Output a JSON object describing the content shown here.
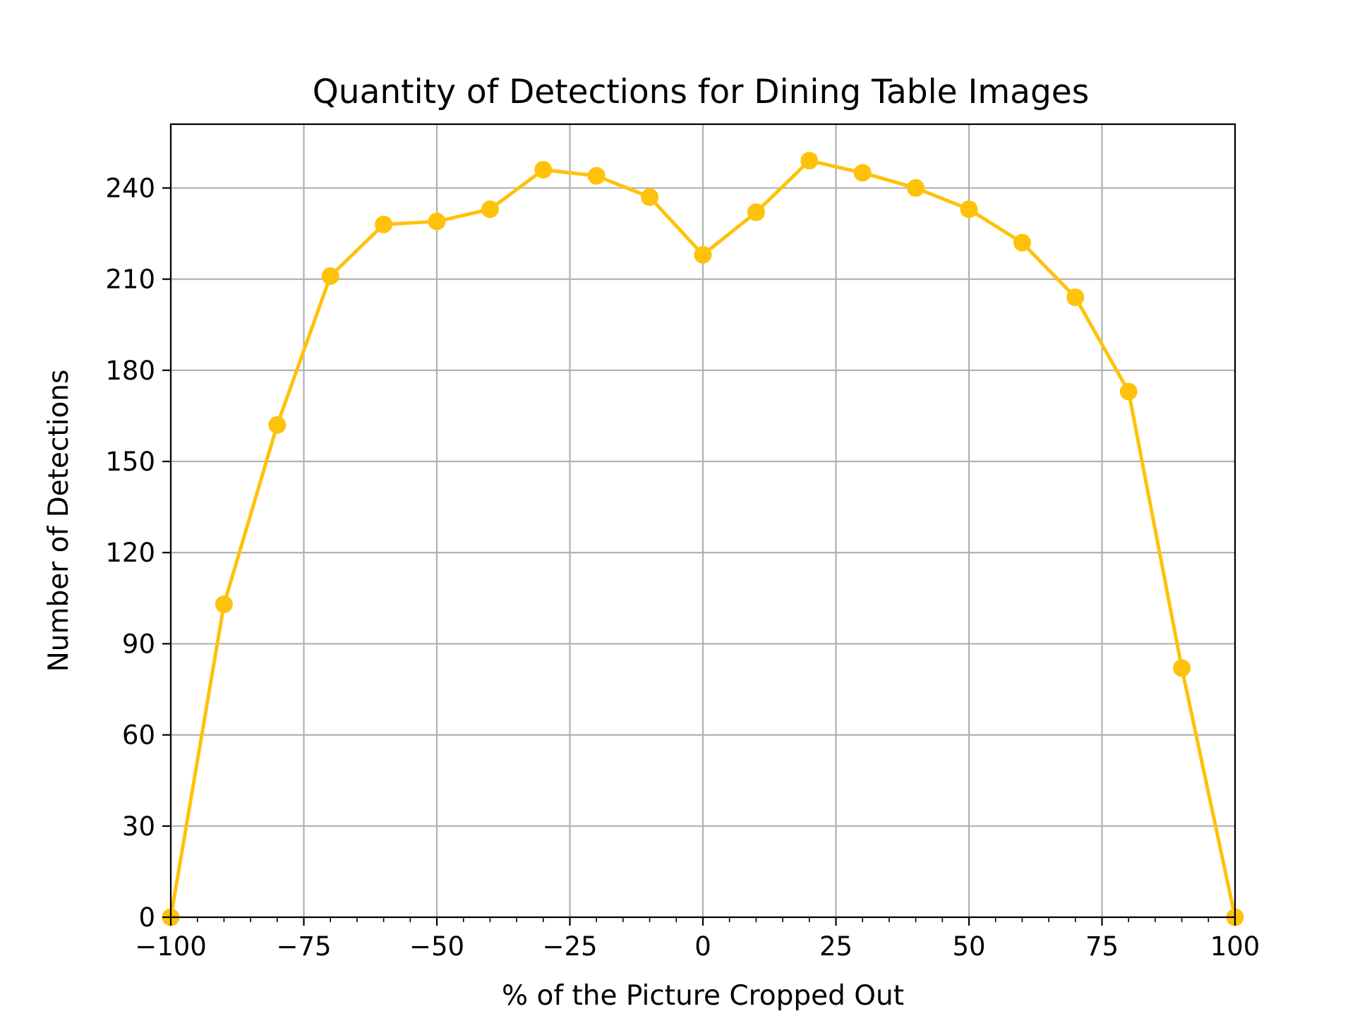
{
  "chart_data": {
    "type": "line",
    "title": "Quantity of Detections for Dining Table Images",
    "xlabel": "% of the Picture Cropped Out",
    "ylabel": "Number of Detections",
    "xlim": [
      -100,
      100
    ],
    "ylim": [
      0,
      261
    ],
    "xticks": [
      -100,
      -75,
      -50,
      -25,
      0,
      25,
      50,
      75,
      100
    ],
    "xtick_labels": [
      "−100",
      "−75",
      "−50",
      "−25",
      "0",
      "25",
      "50",
      "75",
      "100"
    ],
    "yticks": [
      0,
      30,
      60,
      90,
      120,
      150,
      180,
      210,
      240
    ],
    "ytick_labels": [
      "0",
      "30",
      "60",
      "90",
      "120",
      "150",
      "180",
      "210",
      "240"
    ],
    "grid": true,
    "line_color": "#FFC20A",
    "series": [
      {
        "x": [
          -100,
          -90,
          -80,
          -70,
          -60,
          -50,
          -40,
          -30,
          -20,
          -10,
          0,
          10,
          20,
          30,
          40,
          50,
          60,
          70,
          80,
          90,
          100
        ],
        "values": [
          0,
          103,
          162,
          211,
          228,
          229,
          233,
          246,
          244,
          237,
          218,
          232,
          249,
          245,
          240,
          233,
          222,
          204,
          173,
          82,
          0
        ]
      }
    ]
  }
}
